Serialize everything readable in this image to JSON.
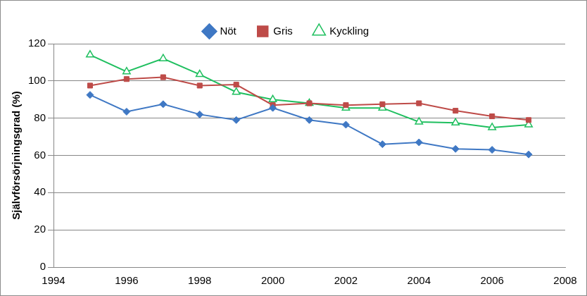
{
  "chart_data": {
    "type": "line",
    "y_label": "Självförsörjningsgrad (%)",
    "x": [
      1995,
      1996,
      1997,
      1998,
      1999,
      2000,
      2001,
      2002,
      2003,
      2004,
      2005,
      2006,
      2007
    ],
    "series": [
      {
        "name": "Nöt",
        "color": "#3f78c4",
        "marker": "diamond",
        "values": [
          92.5,
          83.5,
          87.5,
          82,
          79,
          85.5,
          79,
          76.5,
          66,
          67,
          63.5,
          63,
          60.5
        ]
      },
      {
        "name": "Gris",
        "color": "#be4b48",
        "marker": "square",
        "values": [
          97.5,
          101,
          102,
          97.5,
          98,
          87,
          88,
          87,
          87.5,
          88,
          84,
          81,
          79
        ]
      },
      {
        "name": "Kyckling",
        "color": "#1fbf5f",
        "marker": "open_triangle",
        "values": [
          114,
          105,
          112,
          103.5,
          94,
          90,
          88,
          85.5,
          85.5,
          78,
          77.5,
          75,
          76.5
        ]
      }
    ],
    "xlim": [
      1994,
      2008
    ],
    "xticks": [
      1994,
      1996,
      1998,
      2000,
      2002,
      2004,
      2006,
      2008
    ],
    "ylim": [
      0,
      120
    ],
    "yticks": [
      0,
      20,
      40,
      60,
      80,
      100,
      120
    ],
    "grid": "y",
    "legend": "top"
  }
}
